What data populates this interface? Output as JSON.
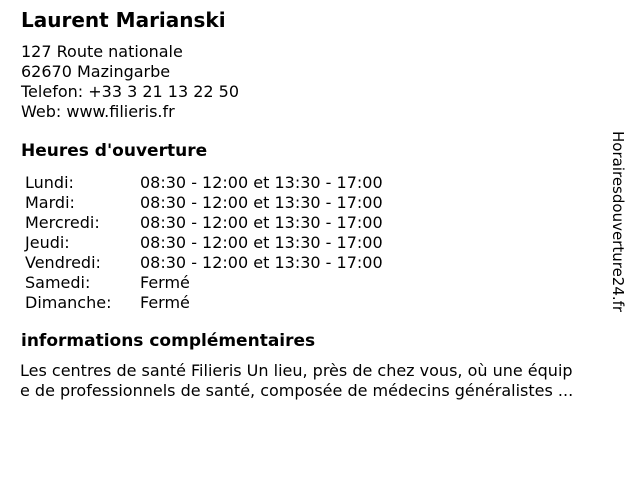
{
  "page": {
    "background": "#ffffff",
    "text_color": "#000000"
  },
  "listing": {
    "name": "Laurent Marianski",
    "address_street": "127 Route nationale",
    "address_city": "62670 Mazingarbe",
    "phone": "Telefon: +33 3 21 13 22 50",
    "website": "Web: www.filieris.fr"
  },
  "opening_hours": {
    "heading": "Heures d'ouverture",
    "rows": [
      {
        "day": "Lundi:",
        "hours": "08:30 - 12:00 et 13:30 - 17:00"
      },
      {
        "day": "Mardi:",
        "hours": "08:30 - 12:00 et 13:30 - 17:00"
      },
      {
        "day": "Mercredi:",
        "hours": "08:30 - 12:00 et 13:30 - 17:00"
      },
      {
        "day": "Jeudi:",
        "hours": "08:30 - 12:00 et 13:30 - 17:00"
      },
      {
        "day": "Vendredi:",
        "hours": "08:30 - 12:00 et 13:30 - 17:00"
      },
      {
        "day": "Samedi:",
        "hours": "Fermé"
      },
      {
        "day": "Dimanche:",
        "hours": "Fermé"
      }
    ]
  },
  "additional_info": {
    "heading": "informations complémentaires",
    "lines": [
      "Les centres de santé Filieris Un lieu, près de chez vous, où une équip",
      "e de professionnels de santé, composée de médecins généralistes ..."
    ]
  },
  "watermark": "Horairesdouverture24.fr"
}
